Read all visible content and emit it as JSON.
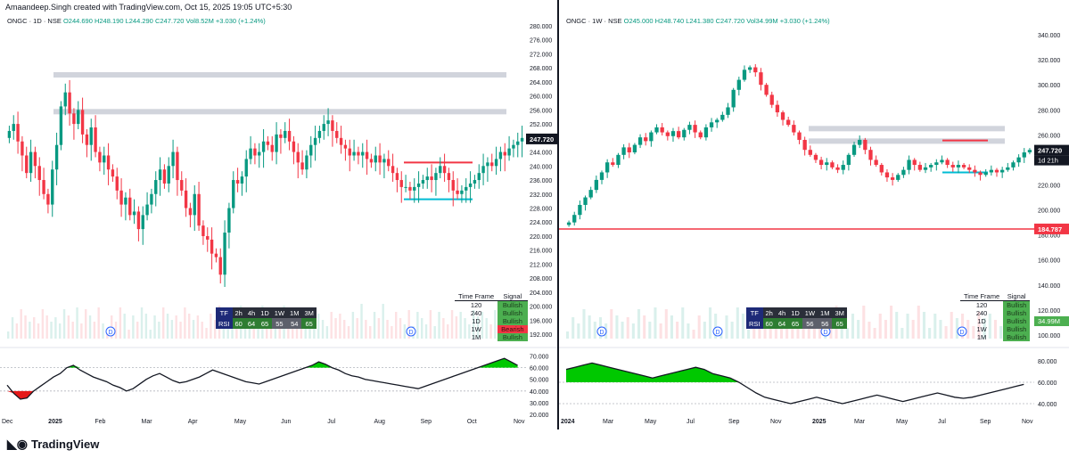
{
  "credit": "Amaandeep.Singh created with TradingView.com, Oct 15, 2025 19:05 UTC+5:30",
  "brand": "TradingView",
  "colors": {
    "up": "#089981",
    "down": "#f23645",
    "accent_blue": "#2962ff",
    "orange": "#ff9800"
  },
  "chart_data": [
    {
      "type": "candlestick",
      "title": "ONGC · 1D · NSE",
      "ohlc_text": "O244.690 H248.190 L244.290 C247.720 Vol8.52M +3.030 (+1.24%)",
      "legend": {
        "symbol": "ONGC · 1D · NSE",
        "values": "O244.690 H248.190 L244.290 C247.720 Vol8.52M +3.030 (+1.24%)"
      },
      "x_ticks": [
        "Dec",
        "2025",
        "Feb",
        "Mar",
        "Apr",
        "May",
        "Jun",
        "Jul",
        "Aug",
        "Sep",
        "Oct",
        "Nov"
      ],
      "y_ticks": [
        "280.000",
        "276.000",
        "272.000",
        "268.000",
        "264.000",
        "260.000",
        "256.000",
        "252.000",
        "248.000",
        "244.000",
        "240.000",
        "236.000",
        "232.000",
        "228.000",
        "224.000",
        "220.000",
        "216.000",
        "212.000",
        "208.000",
        "204.000",
        "200.000",
        "196.000",
        "192.000"
      ],
      "oscillator_ticks": [
        "70.000",
        "60.000",
        "50.000",
        "40.000",
        "30.000",
        "20.000"
      ],
      "ylim": [
        190,
        281
      ],
      "last_price": "247.720",
      "close_series": [
        250,
        252,
        247,
        243,
        238,
        244,
        240,
        236,
        232,
        229,
        239,
        246,
        257,
        261,
        255,
        252,
        256,
        249,
        246,
        251,
        244,
        241,
        243,
        239,
        237,
        233,
        229,
        231,
        226,
        227,
        222,
        226,
        229,
        232,
        236,
        239,
        235,
        240,
        244,
        236,
        233,
        228,
        226,
        232,
        223,
        220,
        219,
        215,
        214,
        209,
        221,
        228,
        236,
        235,
        237,
        242,
        245,
        243,
        244,
        247,
        246,
        244,
        249,
        248,
        250,
        247,
        244,
        241,
        239,
        243,
        246,
        248,
        250,
        252,
        253,
        250,
        248,
        246,
        245,
        243,
        244,
        243,
        244,
        242,
        241,
        243,
        241,
        242,
        240,
        238,
        236,
        234,
        234,
        233,
        234,
        235,
        236,
        237,
        236,
        238,
        240,
        238,
        236,
        233,
        232,
        233,
        234,
        235,
        236,
        238,
        240,
        241,
        240,
        242,
        244,
        243,
        245,
        246,
        247,
        248
      ],
      "levels": [
        {
          "price": 266,
          "color": "#b2b5be",
          "kind": "resistance"
        },
        {
          "price": 255.5,
          "color": "#b2b5be",
          "kind": "resistance"
        },
        {
          "price": 241,
          "color": "#f23645",
          "kind": "support"
        },
        {
          "price": 230.5,
          "color": "#00bcd4",
          "kind": "support"
        }
      ],
      "tf_table": {
        "headers": [
          "Time Frame",
          "Signal"
        ],
        "rows": [
          [
            "120",
            "Bullish"
          ],
          [
            "240",
            "Bullish"
          ],
          [
            "1D",
            "Bullish"
          ],
          [
            "1W",
            "Bearish"
          ],
          [
            "1M",
            "Bullish"
          ]
        ]
      },
      "rsi_table": {
        "labels": [
          "TF",
          "2h",
          "4h",
          "1D",
          "1W",
          "1M",
          "3M"
        ],
        "values": [
          "RSI",
          "60",
          "64",
          "65",
          "55",
          "54",
          "65"
        ]
      },
      "oscillator": [
        45,
        38,
        33,
        34,
        40,
        44,
        48,
        52,
        55,
        60,
        62,
        58,
        55,
        52,
        50,
        48,
        45,
        43,
        40,
        42,
        46,
        50,
        53,
        55,
        52,
        49,
        47,
        48,
        50,
        52,
        55,
        58,
        56,
        54,
        52,
        50,
        48,
        47,
        46,
        48,
        50,
        52,
        54,
        56,
        58,
        60,
        62,
        65,
        63,
        60,
        58,
        55,
        53,
        52,
        50,
        49,
        48,
        47,
        46,
        45,
        44,
        43,
        42,
        44,
        46,
        48,
        50,
        52,
        54,
        56,
        58,
        60,
        62,
        64,
        66,
        68,
        65,
        62
      ]
    },
    {
      "type": "candlestick",
      "title": "ONGC · 1W · NSE",
      "ohlc_text": "O245.000 H248.740 L241.380 C247.720 Vol34.99M +3.030 (+1.24%)",
      "legend": {
        "symbol": "ONGC · 1W · NSE",
        "values": "O245.000 H248.740 L241.380 C247.720 Vol34.99M +3.030 (+1.24%)"
      },
      "x_ticks": [
        "2024",
        "Mar",
        "May",
        "Jul",
        "Sep",
        "Nov",
        "2025",
        "Mar",
        "May",
        "Jul",
        "Sep",
        "Nov"
      ],
      "y_ticks": [
        "340.000",
        "320.000",
        "300.000",
        "280.000",
        "260.000",
        "240.000",
        "220.000",
        "200.000",
        "180.000",
        "160.000",
        "140.000",
        "120.000",
        "100.000"
      ],
      "oscillator_ticks": [
        "80.000",
        "60.000",
        "40.000"
      ],
      "ylim": [
        95,
        350
      ],
      "last_price": "247.720",
      "countdown": "1d 21h",
      "red_level_price": "184.787",
      "vol_badge": "34.99M",
      "close_series": [
        190,
        196,
        204,
        210,
        216,
        224,
        230,
        238,
        236,
        244,
        250,
        246,
        252,
        258,
        255,
        262,
        266,
        262,
        259,
        263,
        258,
        264,
        268,
        262,
        258,
        266,
        270,
        272,
        276,
        282,
        296,
        304,
        312,
        314,
        310,
        300,
        292,
        284,
        278,
        272,
        268,
        262,
        256,
        248,
        244,
        240,
        236,
        238,
        234,
        232,
        236,
        244,
        252,
        256,
        248,
        240,
        236,
        230,
        226,
        224,
        228,
        232,
        240,
        236,
        232,
        234,
        236,
        238,
        240,
        236,
        234,
        236,
        234,
        232,
        230,
        228,
        230,
        232,
        230,
        232,
        234,
        238,
        242,
        246,
        248
      ],
      "levels": [
        {
          "price": 265,
          "color": "#b2b5be",
          "kind": "resistance"
        },
        {
          "price": 255,
          "color": "#b2b5be",
          "kind": "resistance"
        },
        {
          "price": 255.5,
          "color": "#f23645",
          "kind": "support"
        },
        {
          "price": 230,
          "color": "#00bcd4",
          "kind": "support"
        },
        {
          "price": 184.787,
          "color": "#f23645",
          "kind": "support"
        }
      ],
      "tf_table": {
        "headers": [
          "Time Frame",
          "Signal"
        ],
        "rows": [
          [
            "120",
            "Bullish"
          ],
          [
            "240",
            "Bullish"
          ],
          [
            "1D",
            "Bullish"
          ],
          [
            "1W",
            "Bullish"
          ],
          [
            "1M",
            "Bullish"
          ]
        ]
      },
      "rsi_table": {
        "labels": [
          "TF",
          "2h",
          "4h",
          "1D",
          "1W",
          "1M",
          "3M"
        ],
        "values": [
          "RSI",
          "60",
          "64",
          "65",
          "56",
          "56",
          "65"
        ]
      },
      "oscillator": [
        72,
        74,
        76,
        78,
        76,
        74,
        72,
        70,
        68,
        66,
        64,
        66,
        68,
        70,
        72,
        74,
        72,
        68,
        66,
        64,
        60,
        55,
        50,
        46,
        44,
        42,
        40,
        42,
        44,
        46,
        44,
        42,
        40,
        42,
        44,
        46,
        48,
        46,
        44,
        42,
        44,
        46,
        48,
        50,
        48,
        46,
        45,
        46,
        48,
        50,
        52,
        54,
        56,
        58
      ]
    }
  ]
}
